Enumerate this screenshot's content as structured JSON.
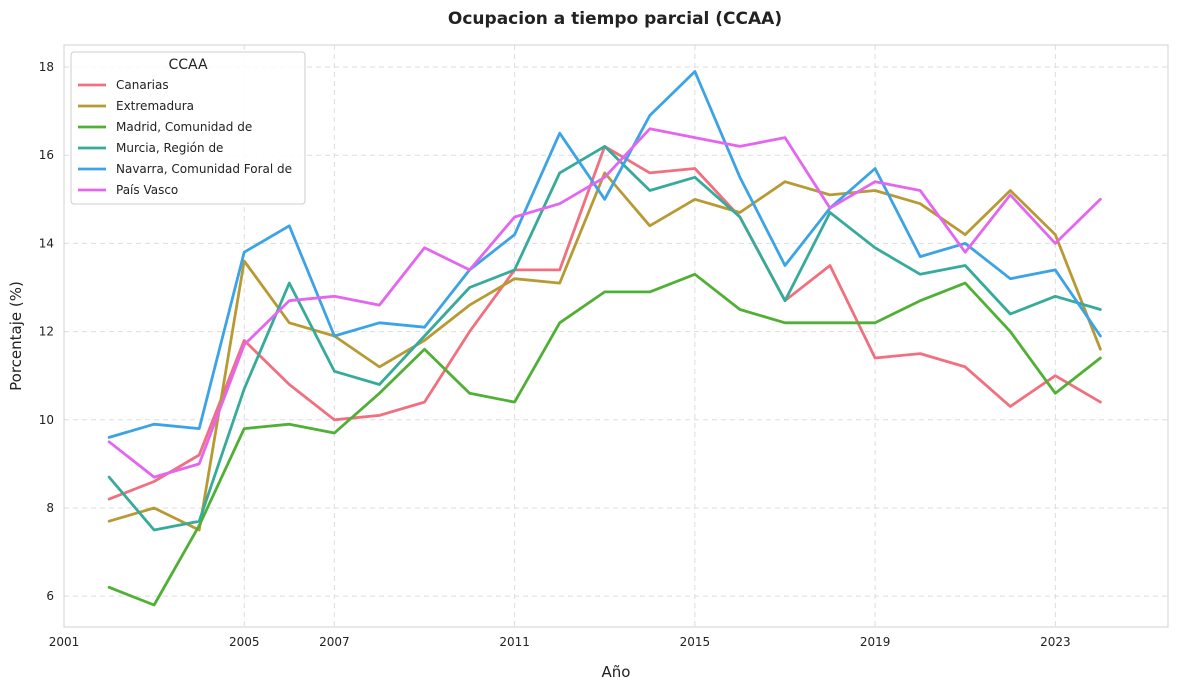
{
  "chart_data": {
    "type": "line",
    "title": "Ocupacion a tiempo parcial (CCAA)",
    "xlabel": "Año",
    "ylabel": "Porcentaje (%)",
    "xlim": [
      2001.0,
      2025.5
    ],
    "ylim": [
      5.3,
      18.5
    ],
    "xticks": [
      "2001",
      "2005",
      "2007",
      "2011",
      "2015",
      "2019",
      "2023"
    ],
    "yticks": [
      "6",
      "8",
      "10",
      "12",
      "14",
      "16",
      "18"
    ],
    "grid": true,
    "legend_title": "CCAA",
    "legend_position": "top-left",
    "x": [
      2002,
      2003,
      2004,
      2005,
      2006,
      2007,
      2008,
      2009,
      2010,
      2011,
      2012,
      2013,
      2014,
      2015,
      2016,
      2017,
      2018,
      2019,
      2020,
      2021,
      2022,
      2023,
      2024
    ],
    "series": [
      {
        "name": "Canarias",
        "color": "#f0707f",
        "values": [
          8.2,
          8.6,
          9.2,
          11.8,
          10.8,
          10.0,
          10.1,
          10.4,
          12.0,
          13.4,
          13.4,
          16.2,
          15.6,
          15.7,
          14.6,
          12.7,
          13.5,
          11.4,
          11.5,
          11.2,
          10.3,
          11.0,
          10.4
        ]
      },
      {
        "name": "Extremadura",
        "color": "#b89a35",
        "values": [
          7.7,
          8.0,
          7.5,
          13.6,
          12.2,
          11.9,
          11.2,
          11.8,
          12.6,
          13.2,
          13.1,
          15.6,
          14.4,
          15.0,
          14.7,
          15.4,
          15.1,
          15.2,
          14.9,
          14.2,
          15.2,
          14.2,
          11.6
        ]
      },
      {
        "name": "Madrid, Comunidad de",
        "color": "#50b035",
        "values": [
          6.2,
          5.8,
          7.6,
          9.8,
          9.9,
          9.7,
          10.6,
          11.6,
          10.6,
          10.4,
          12.2,
          12.9,
          12.9,
          13.3,
          12.5,
          12.2,
          12.2,
          12.2,
          12.7,
          13.1,
          12.0,
          10.6,
          11.4
        ]
      },
      {
        "name": "Murcia, Región de",
        "color": "#36ab9a",
        "values": [
          8.7,
          7.5,
          7.7,
          10.7,
          13.1,
          11.1,
          10.8,
          11.9,
          13.0,
          13.4,
          15.6,
          16.2,
          15.2,
          15.5,
          14.6,
          12.7,
          14.7,
          13.9,
          13.3,
          13.5,
          12.4,
          12.8,
          12.5
        ]
      },
      {
        "name": "Navarra, Comunidad Foral de",
        "color": "#3ba3e6",
        "values": [
          9.6,
          9.9,
          9.8,
          13.8,
          14.4,
          11.9,
          12.2,
          12.1,
          13.4,
          14.2,
          16.5,
          15.0,
          16.9,
          17.9,
          15.5,
          13.5,
          14.8,
          15.7,
          13.7,
          14.0,
          13.2,
          13.4,
          11.9
        ]
      },
      {
        "name": "País Vasco",
        "color": "#e466f0",
        "values": [
          9.5,
          8.7,
          9.0,
          11.7,
          12.7,
          12.8,
          12.6,
          13.9,
          13.4,
          14.6,
          14.9,
          15.5,
          16.6,
          16.4,
          16.2,
          16.4,
          14.8,
          15.4,
          15.2,
          13.8,
          15.1,
          14.0,
          15.0
        ]
      }
    ]
  }
}
